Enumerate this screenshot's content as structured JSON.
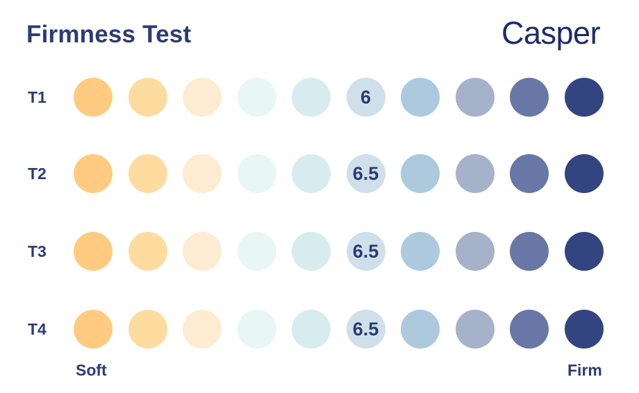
{
  "title": "Firmness Test",
  "logo": "Casper",
  "scale": {
    "low": "Soft",
    "high": "Firm"
  },
  "colors": {
    "text": "#2d3b75",
    "logo": "#1d2b6b",
    "scale": [
      "#fecb80",
      "#fedca0",
      "#fdecd2",
      "#e9f6f6",
      "#d6ecef",
      "#cfe0ea",
      "#acc9de",
      "#a6b1ca",
      "#6877a5",
      "#334580"
    ]
  },
  "chart_data": {
    "type": "dot-scale",
    "title": "Firmness Test",
    "scale_min": 1,
    "scale_max": 10,
    "low_label": "Soft",
    "high_label": "Firm",
    "rows": [
      {
        "label": "T1",
        "value": 6,
        "display": "6"
      },
      {
        "label": "T2",
        "value": 6.5,
        "display": "6.5"
      },
      {
        "label": "T3",
        "value": 6.5,
        "display": "6.5"
      },
      {
        "label": "T4",
        "value": 6.5,
        "display": "6.5"
      }
    ]
  }
}
